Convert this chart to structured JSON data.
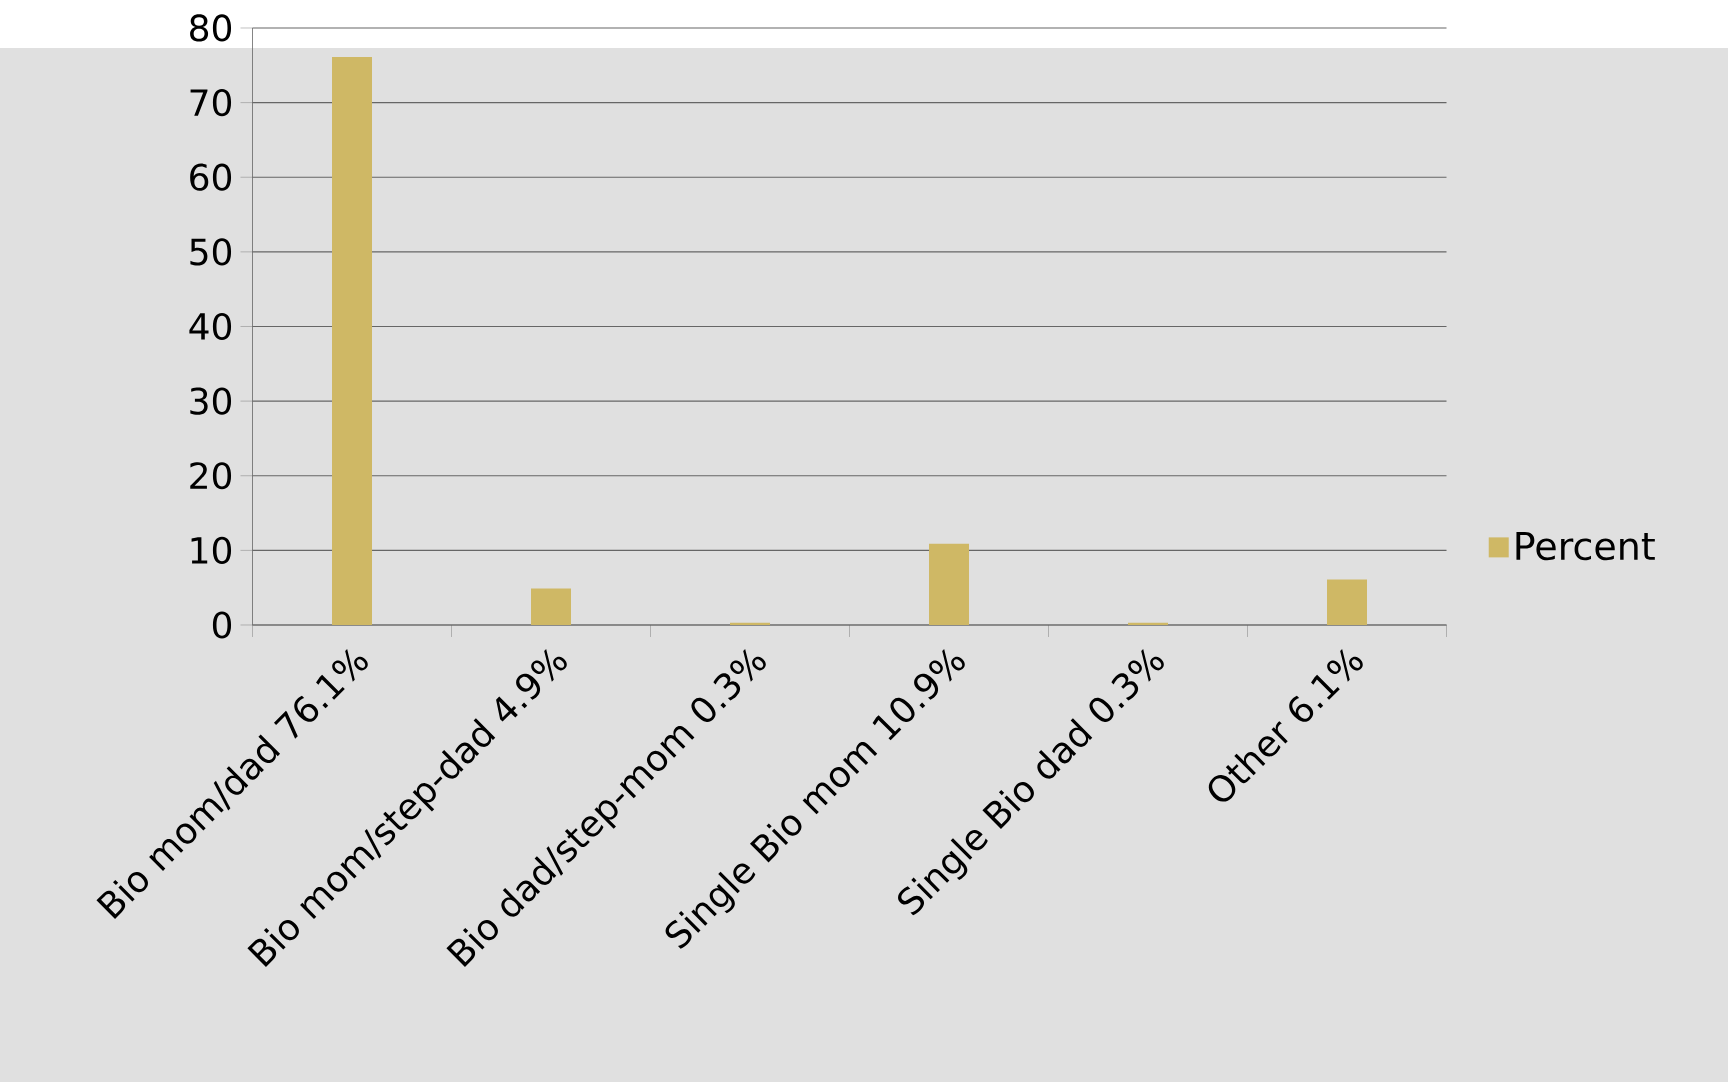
{
  "chart_data": {
    "type": "bar",
    "categories": [
      "Bio mom/dad 76.1%",
      "Bio mom/step-dad 4.9%",
      "Bio dad/step-mom 0.3%",
      "Single Bio mom 10.9%",
      "Single Bio dad 0.3%",
      "Other 6.1%"
    ],
    "series": [
      {
        "name": "Percent",
        "color": "#cfb865",
        "values": [
          76.1,
          4.9,
          0.3,
          10.9,
          0.3,
          6.1
        ]
      }
    ],
    "ylim": [
      0,
      80
    ],
    "yticks": [
      0,
      10,
      20,
      30,
      40,
      50,
      60,
      70,
      80
    ],
    "grid": "y",
    "legend": "right"
  }
}
